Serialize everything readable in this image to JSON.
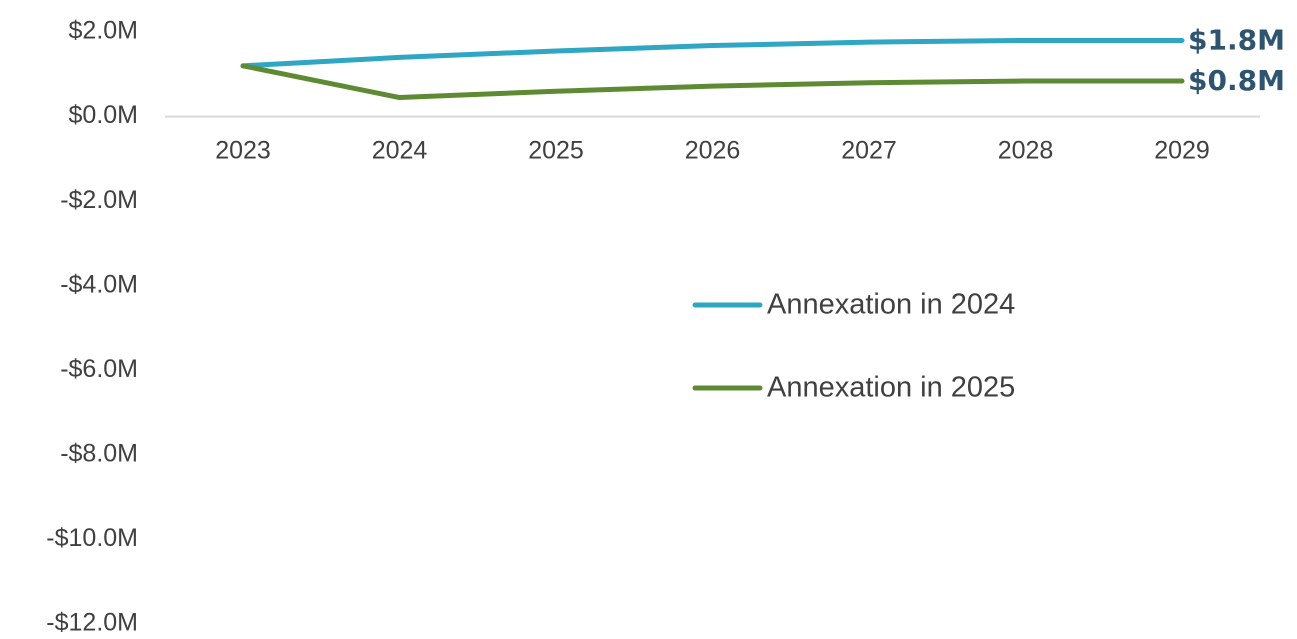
{
  "chart_data": {
    "type": "line",
    "title": "",
    "xlabel": "",
    "ylabel": "",
    "categories": [
      "2023",
      "2024",
      "2025",
      "2026",
      "2027",
      "2028",
      "2029"
    ],
    "ylim": [
      -12.0,
      2.0
    ],
    "yticks": [
      2.0,
      0.0,
      -2.0,
      -4.0,
      -6.0,
      -8.0,
      -10.0,
      -12.0
    ],
    "ytick_labels": [
      "$2.0M",
      "$0.0M",
      "-$2.0M",
      "-$4.0M",
      "-$6.0M",
      "-$8.0M",
      "-$10.0M",
      "-$12.0M"
    ],
    "grid": false,
    "legend_position": "center-right",
    "series": [
      {
        "name": "Annexation in 2024",
        "color": "#2fa6c4",
        "values": [
          1.2,
          1.4,
          1.55,
          1.68,
          1.76,
          1.8,
          1.8
        ],
        "end_label": "$1.8M"
      },
      {
        "name": "Annexation in 2025",
        "color": "#5f8a34",
        "values": [
          1.2,
          0.45,
          0.6,
          0.72,
          0.8,
          0.84,
          0.84
        ],
        "end_label": "$0.8M"
      }
    ]
  }
}
